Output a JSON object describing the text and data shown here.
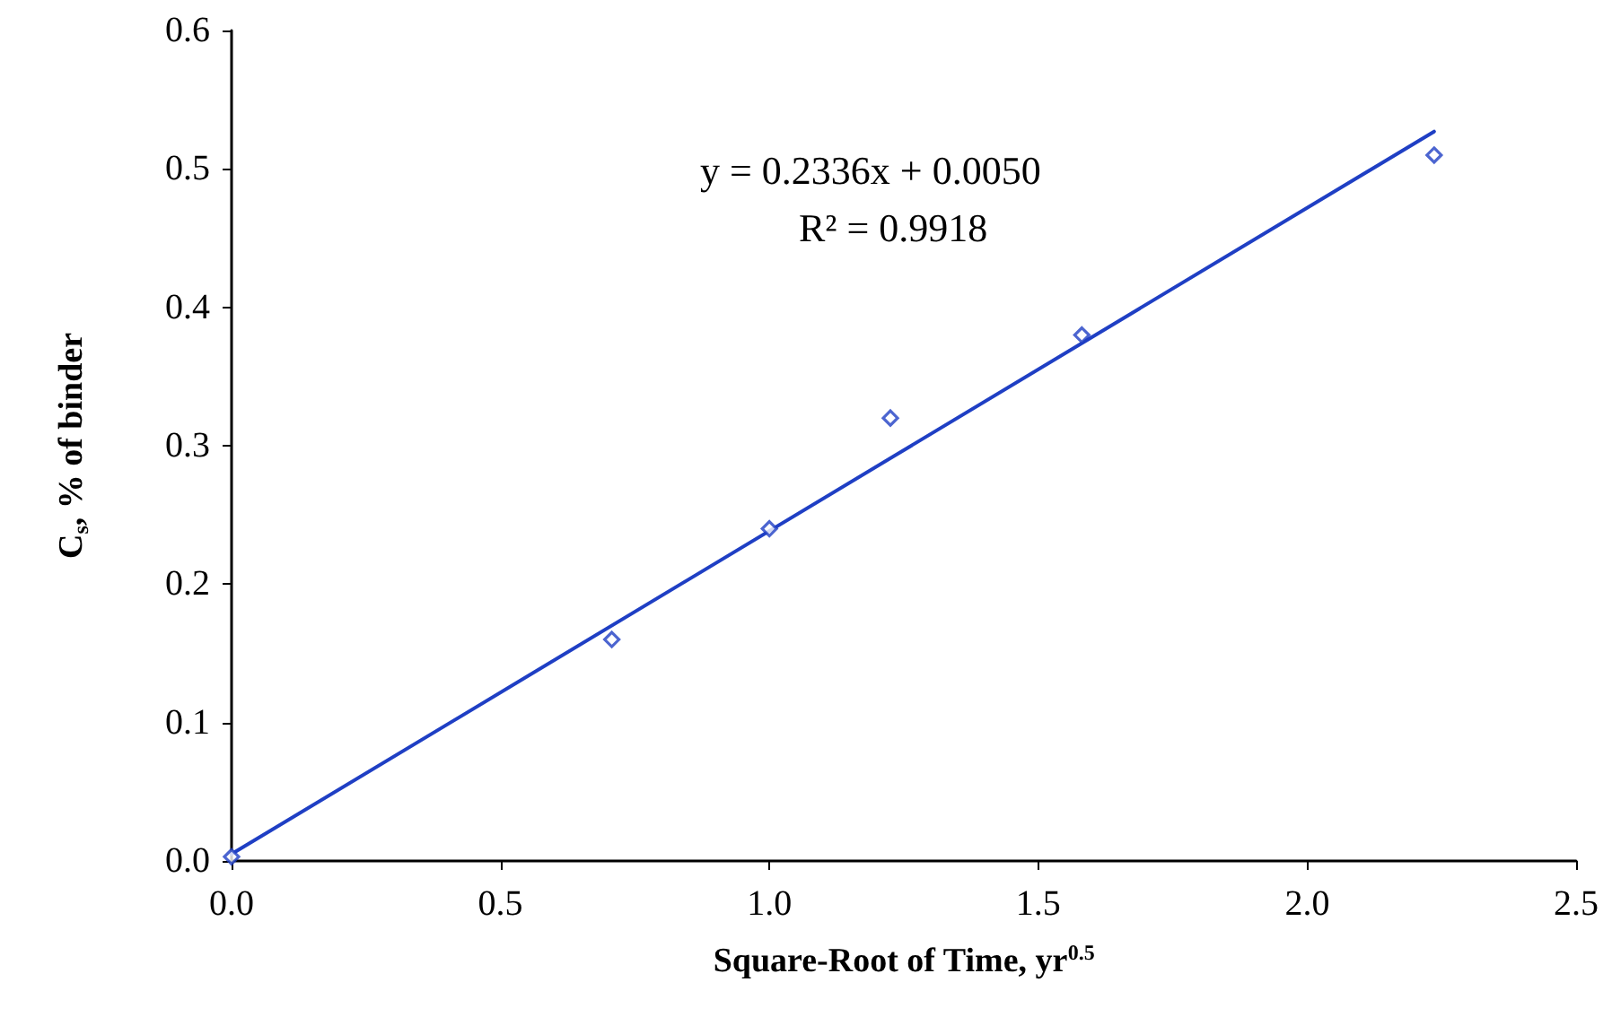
{
  "chart_data": {
    "type": "scatter",
    "xlabel": "Square-Root of Time, yr$^{0.5}$",
    "ylabel": "C$_{s}$, % of binder",
    "series": [
      {
        "color": "#1f3fc4",
        "marker": "diamond",
        "x": [
          0,
          0.707,
          1.0,
          1.225,
          1.581,
          2.236
        ],
        "values": [
          0.003,
          0.16,
          0.24,
          0.32,
          0.38,
          0.51
        ]
      },
      {
        "type": "line",
        "color": "#1f3fc4",
        "marker": "none",
        "line_style": "solid",
        "x": [
          0,
          2.236
        ],
        "values": [
          0.005,
          0.527
        ]
      }
    ],
    "annotations": [
      "y = 0.2336x + 0.0050",
      "R² = 0.9918"
    ],
    "xlim": [
      0,
      2.5
    ],
    "xticks": [
      {
        "value": 0,
        "label": "0.0"
      },
      {
        "value": 0.5,
        "label": "0.5"
      },
      {
        "value": 1,
        "label": "1.0"
      },
      {
        "value": 1.5,
        "label": "1.5"
      },
      {
        "value": 2,
        "label": "2.0"
      },
      {
        "value": 2.5,
        "label": "2.5"
      }
    ],
    "ylim": [
      0,
      0.6
    ],
    "yticks": [
      {
        "value": 0,
        "label": "0.0"
      },
      0.1,
      0.2,
      0.3,
      0.4,
      0.5,
      0.6
    ],
    "grid": false
  }
}
